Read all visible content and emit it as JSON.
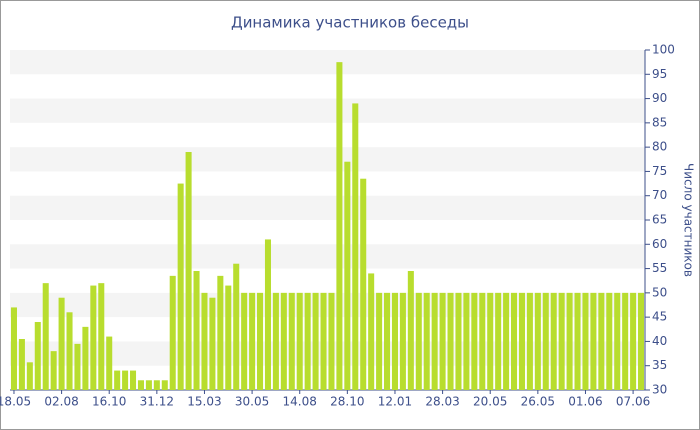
{
  "chart_data": {
    "type": "bar",
    "title": "Динамика участников беседы",
    "y_axis_label": "Число участников",
    "categories": [
      "18.05",
      null,
      null,
      null,
      null,
      null,
      "02.08",
      null,
      null,
      null,
      null,
      null,
      "16.10",
      null,
      null,
      null,
      null,
      null,
      "31.12",
      null,
      null,
      null,
      null,
      null,
      "15.03",
      null,
      null,
      null,
      null,
      null,
      "30.05",
      null,
      null,
      null,
      null,
      null,
      "14.08",
      null,
      null,
      null,
      null,
      null,
      "28.10",
      null,
      null,
      null,
      null,
      null,
      "12.01",
      null,
      null,
      null,
      null,
      null,
      "28.03",
      null,
      null,
      null,
      null,
      null,
      "20.05",
      null,
      null,
      null,
      null,
      null,
      "26.05",
      null,
      null,
      null,
      null,
      null,
      "01.06",
      null,
      null,
      null,
      null,
      null,
      "07.06",
      null
    ],
    "values": [
      47,
      40.5,
      35.7,
      44,
      52,
      38,
      49,
      46,
      39.5,
      43,
      51.5,
      52,
      41,
      34,
      34,
      34,
      32,
      32,
      32,
      32,
      53.5,
      72.5,
      79,
      54.5,
      50,
      49,
      53.5,
      51.5,
      56,
      50,
      50,
      50,
      61,
      50,
      50,
      50,
      50,
      50,
      50,
      50,
      50,
      97.5,
      77,
      89,
      73.5,
      54,
      50,
      50,
      50,
      50,
      54.5,
      50,
      50,
      50,
      50,
      50,
      50,
      50,
      50,
      50,
      50,
      50,
      50,
      50,
      50,
      50,
      50,
      50,
      50,
      50,
      50,
      50,
      50,
      50,
      50,
      50,
      50,
      50,
      50,
      50
    ],
    "color": "#b8dd2e",
    "ylim": [
      30,
      100
    ],
    "yticks": [
      30,
      35,
      40,
      45,
      50,
      55,
      60,
      65,
      70,
      75,
      80,
      85,
      90,
      95,
      100
    ],
    "grid": "bands",
    "y_axis_side": "right"
  }
}
